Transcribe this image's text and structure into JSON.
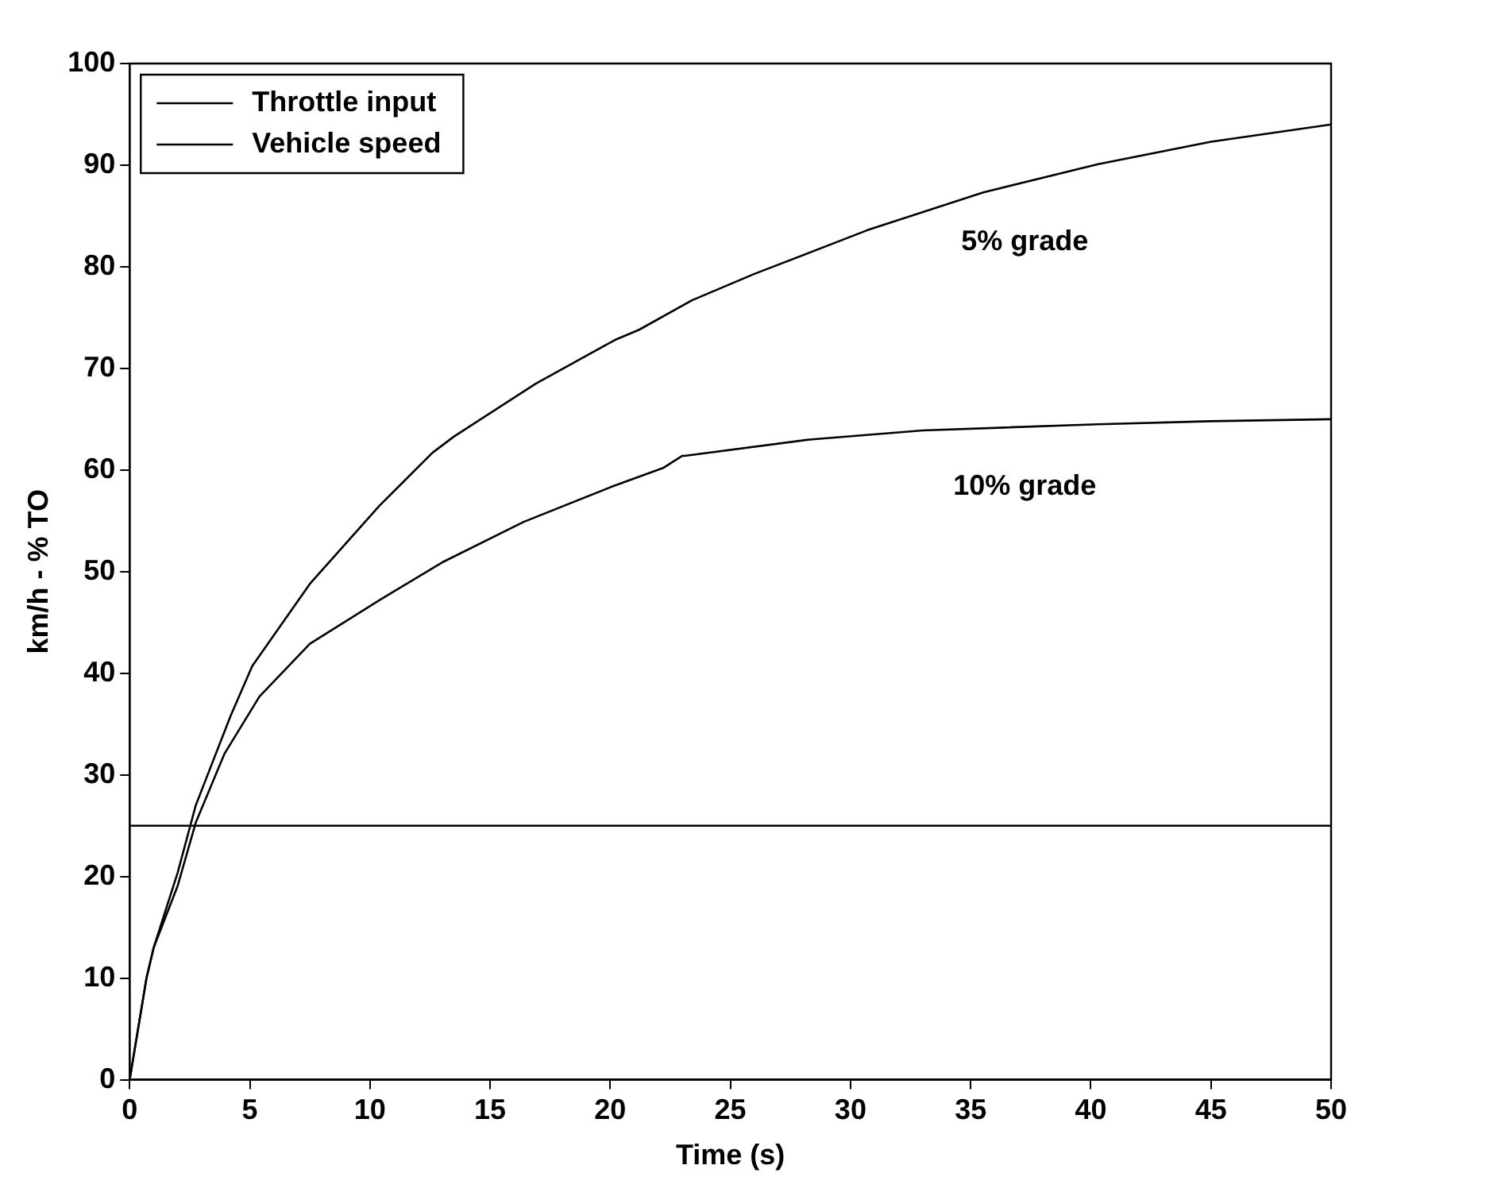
{
  "chart_data": {
    "type": "line",
    "xlabel": "Time (s)",
    "ylabel": "km/h - % TO",
    "xlim": [
      0,
      50
    ],
    "xticks": [
      0,
      5,
      10,
      15,
      20,
      25,
      30,
      35,
      40,
      45,
      50
    ],
    "ylim": [
      0,
      100
    ],
    "yticks": [
      0,
      10,
      20,
      30,
      40,
      50,
      60,
      70,
      80,
      90,
      100
    ],
    "legend": "top left",
    "marker": "none",
    "line_style": "solid",
    "series": [
      {
        "name": "Throttle input",
        "color": "#000000",
        "x": [
          0,
          50
        ],
        "values": [
          25,
          25
        ]
      },
      {
        "name": "Vehicle speed",
        "color": "#000000",
        "x": [
          0,
          0.7,
          1,
          2,
          2.75,
          4.2,
          5.1,
          7.5,
          10.4,
          12.6,
          13.5,
          16.9,
          20.2,
          21.2,
          23.4,
          26,
          30.7,
          35.5,
          40.3,
          45,
          50
        ],
        "values": [
          0,
          10,
          13,
          20.4,
          27,
          35.8,
          40.7,
          48.8,
          56.5,
          61.7,
          63.3,
          68.5,
          72.8,
          73.8,
          76.7,
          79.3,
          83.6,
          87.3,
          90.1,
          92.3,
          94
        ]
      },
      {
        "color": "#000000",
        "x": [
          0,
          0.7,
          1,
          2,
          2.75,
          3.95,
          5.4,
          7.5,
          10.4,
          13,
          16.4,
          20,
          22.2,
          23,
          23.1,
          28.3,
          33,
          40.3,
          45,
          50
        ],
        "values": [
          0,
          10,
          13,
          19.1,
          25.3,
          32.1,
          37.7,
          42.9,
          47.2,
          50.9,
          54.9,
          58.3,
          60.2,
          61.4,
          61.4,
          63,
          63.9,
          64.5,
          64.8,
          65
        ]
      }
    ],
    "annotations": [
      "5% grade",
      "10% grade"
    ]
  }
}
